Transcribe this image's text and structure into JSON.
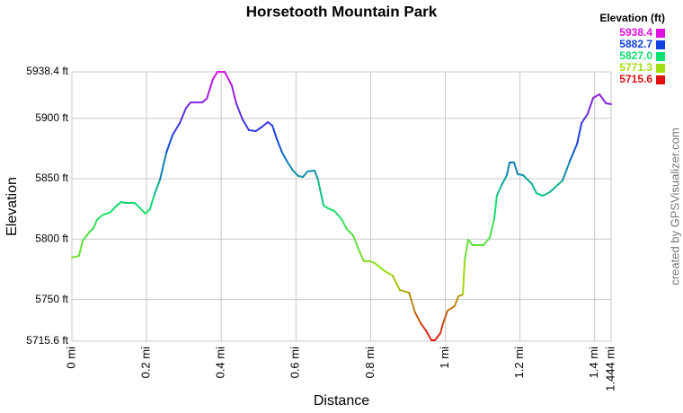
{
  "chart_data": {
    "type": "line",
    "title": "Horsetooth Mountain Park",
    "x_label": "Distance",
    "y_label": "Elevation",
    "credit": "created by GPSVisualizer.com",
    "legend": {
      "title": "Elevation (ft)",
      "entries": [
        {
          "value": 5938.4,
          "label": "5938.4",
          "color": "#e010e0"
        },
        {
          "value": 5882.7,
          "label": "5882.7",
          "color": "#1040e0"
        },
        {
          "value": 5827.0,
          "label": "5827.0",
          "color": "#10e070"
        },
        {
          "value": 5771.3,
          "label": "5771.3",
          "color": "#a0e010"
        },
        {
          "value": 5715.6,
          "label": "5715.6",
          "color": "#e01010"
        }
      ]
    },
    "x": [
      0,
      0.019,
      0.029,
      0.048,
      0.058,
      0.067,
      0.084,
      0.101,
      0.12,
      0.132,
      0.144,
      0.168,
      0.183,
      0.197,
      0.209,
      0.221,
      0.236,
      0.253,
      0.27,
      0.289,
      0.306,
      0.318,
      0.349,
      0.361,
      0.378,
      0.39,
      0.409,
      0.428,
      0.44,
      0.457,
      0.474,
      0.493,
      0.51,
      0.525,
      0.537,
      0.549,
      0.563,
      0.578,
      0.592,
      0.606,
      0.619,
      0.631,
      0.65,
      0.659,
      0.674,
      0.686,
      0.703,
      0.722,
      0.736,
      0.753,
      0.77,
      0.782,
      0.799,
      0.811,
      0.823,
      0.838,
      0.859,
      0.878,
      0.903,
      0.919,
      0.934,
      0.948,
      0.963,
      0.972,
      0.987,
      0.994,
      1.006,
      1.025,
      1.035,
      1.047,
      1.052,
      1.061,
      1.073,
      1.102,
      1.119,
      1.131,
      1.138,
      1.15,
      1.165,
      1.172,
      1.184,
      1.194,
      1.208,
      1.22,
      1.232,
      1.244,
      1.261,
      1.28,
      1.314,
      1.333,
      1.353,
      1.365,
      1.381,
      1.396,
      1.413,
      1.43,
      1.444
    ],
    "values": [
      5784.7,
      5786.2,
      5798.8,
      5806.2,
      5809.2,
      5815.9,
      5820.3,
      5821.8,
      5827.7,
      5830.7,
      5830.0,
      5830.0,
      5825.5,
      5821.1,
      5824.8,
      5836.7,
      5849.3,
      5871.6,
      5886.4,
      5896.1,
      5908.7,
      5913.1,
      5913.1,
      5916.1,
      5932.5,
      5938.4,
      5938.4,
      5927.3,
      5912.4,
      5899.0,
      5890.1,
      5889.4,
      5893.1,
      5896.8,
      5893.8,
      5882.7,
      5871.6,
      5863.4,
      5856.7,
      5852.3,
      5851.5,
      5856.0,
      5856.7,
      5849.3,
      5827.7,
      5825.5,
      5823.3,
      5816.6,
      5808.4,
      5803.2,
      5789.9,
      5781.7,
      5781.7,
      5780.2,
      5777.2,
      5773.5,
      5769.8,
      5757.9,
      5755.7,
      5739.4,
      5730.5,
      5724.5,
      5716.3,
      5716.3,
      5722.3,
      5730.5,
      5740.8,
      5744.6,
      5752.7,
      5754.2,
      5782.4,
      5799.5,
      5795.1,
      5795.1,
      5801.0,
      5816.6,
      5835.9,
      5844.1,
      5853.0,
      5863.4,
      5863.4,
      5853.7,
      5853.0,
      5849.3,
      5845.6,
      5838.1,
      5835.9,
      5838.9,
      5848.5,
      5864.1,
      5879.0,
      5896.1,
      5903.5,
      5916.9,
      5919.8,
      5912.4,
      5911.7
    ],
    "xlim": [
      0,
      1.444
    ],
    "ylim": [
      5715.6,
      5938.4
    ],
    "xticks": [
      {
        "value": 0,
        "label": "0 mi"
      },
      {
        "value": 0.2,
        "label": "0.2 mi"
      },
      {
        "value": 0.4,
        "label": "0.4 mi"
      },
      {
        "value": 0.6,
        "label": "0.6 mi"
      },
      {
        "value": 0.8,
        "label": "0.8 mi"
      },
      {
        "value": 1,
        "label": "1 mi"
      },
      {
        "value": 1.2,
        "label": "1.2 mi"
      },
      {
        "value": 1.4,
        "label": "1.4 mi"
      },
      {
        "value": 1.444,
        "label": "1.444 mi"
      }
    ],
    "yticks": [
      {
        "value": 5715.6,
        "label": "5715.6 ft"
      },
      {
        "value": 5750,
        "label": "5750 ft"
      },
      {
        "value": 5800,
        "label": "5800 ft"
      },
      {
        "value": 5850,
        "label": "5850 ft"
      },
      {
        "value": 5900,
        "label": "5900 ft"
      },
      {
        "value": 5938.4,
        "label": "5938.4 ft"
      }
    ],
    "grid": true
  }
}
